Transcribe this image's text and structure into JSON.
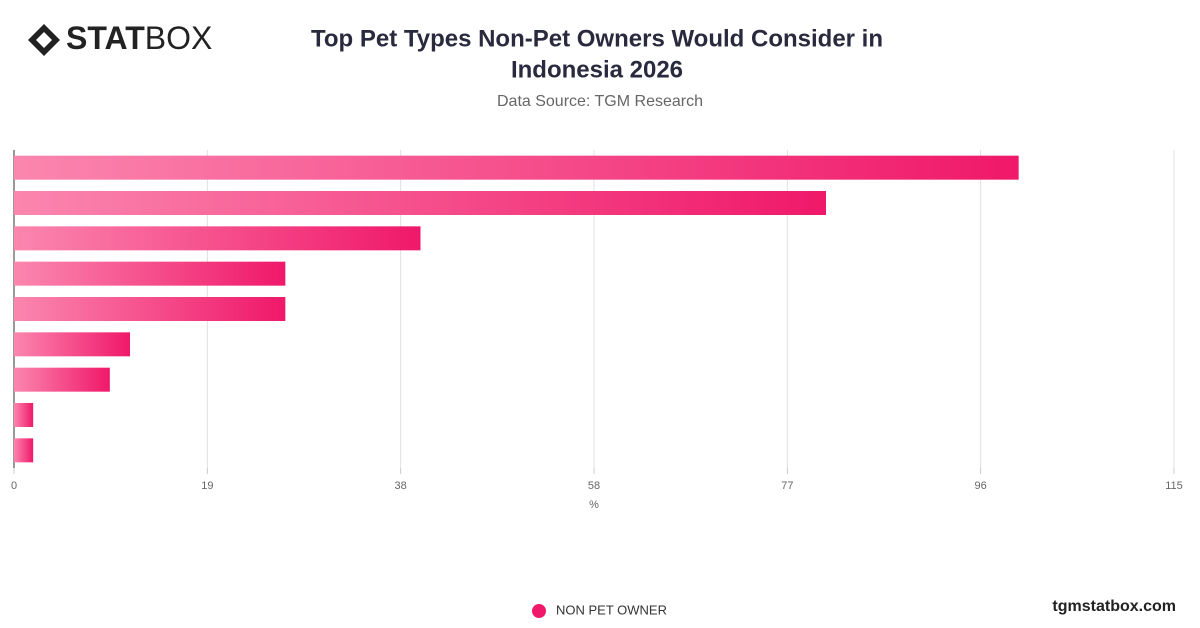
{
  "logo": [
    "STAT",
    "BOX"
  ],
  "footer": "tgmstatbox.com",
  "chart_data": {
    "type": "barh",
    "title": [
      "Top Pet Types Non-Pet Owners Would Consider in",
      "Indonesia 2026"
    ],
    "subtitle": "Data Source: TGM Research",
    "x_label": "%",
    "categories": [
      null,
      null,
      null,
      null,
      null,
      null,
      null,
      null,
      null
    ],
    "series": [
      {
        "name": "NON PET OWNER",
        "color": "#f0186a",
        "values": [
          99.6,
          80.5,
          40.3,
          26.9,
          26.9,
          11.5,
          9.5,
          1.9,
          1.9
        ]
      }
    ],
    "xlim": [
      0,
      115
    ],
    "xticks": [
      0,
      {
        "value": 19.17,
        "label": "19"
      },
      {
        "value": 38.33,
        "label": "38"
      },
      {
        "value": 57.5,
        "label": "58"
      },
      {
        "value": 76.67,
        "label": "77"
      },
      {
        "value": 95.83,
        "label": "96"
      },
      115
    ],
    "grid": true,
    "legend": "bottom"
  }
}
